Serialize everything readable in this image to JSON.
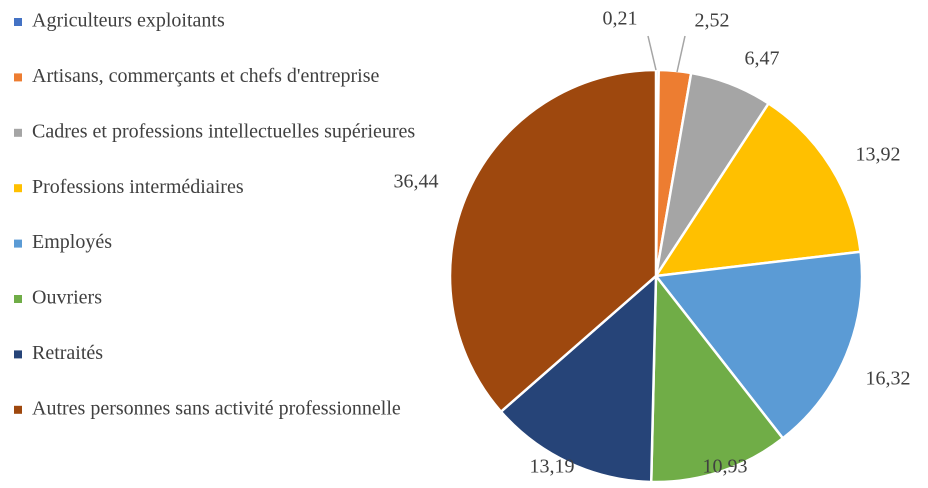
{
  "chart_data": {
    "type": "pie",
    "categories": [
      "Agriculteurs exploitants",
      "Artisans, commerçants et chefs d'entreprise",
      "Cadres et professions intellectuelles supérieures",
      "Professions intermédiaires",
      "Employés",
      "Ouvriers",
      "Retraités",
      "Autres personnes sans activité professionnelle"
    ],
    "values": [
      0.21,
      2.52,
      6.47,
      13.92,
      16.32,
      10.93,
      13.19,
      36.44
    ],
    "value_labels": [
      "0,21",
      "2,52",
      "6,47",
      "13,92",
      "16,32",
      "10,93",
      "13,19",
      "36,44"
    ],
    "colors": [
      "#4472c4",
      "#ed7d31",
      "#a5a5a5",
      "#ffc000",
      "#5b9bd5",
      "#70ad47",
      "#264478",
      "#9e480e"
    ],
    "legend": "left"
  }
}
